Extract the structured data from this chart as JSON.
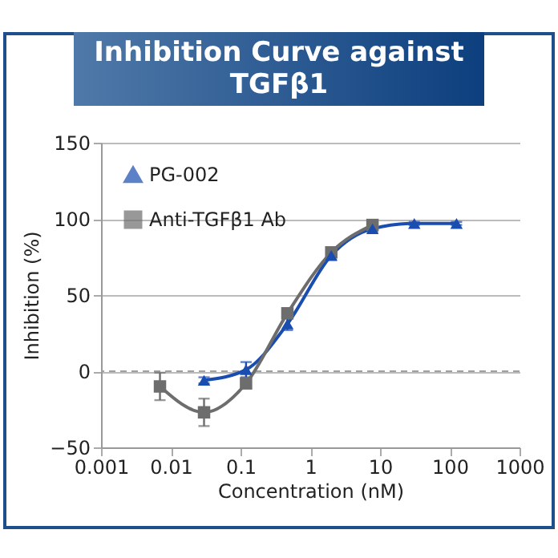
{
  "chart_data": {
    "type": "line",
    "title": "Inhibition Curve against TGFβ1",
    "xlabel": "Concentration (nM)",
    "ylabel": "Inhibition (%)",
    "log": "x",
    "xlim": [
      0.001,
      1000
    ],
    "xticks": [
      0.001,
      0.01,
      0.1,
      1,
      10,
      100,
      1000
    ],
    "ylim": [
      -50,
      150
    ],
    "yticks": [
      -50,
      0,
      50,
      100,
      150
    ],
    "grid": "y",
    "legend": "top left",
    "ref_lines": [
      {
        "axis": "y",
        "value": 0,
        "line_style": "dashed",
        "color": "#a0a0a0"
      }
    ],
    "series": [
      {
        "name": "PG-002",
        "color": "#1a4db0",
        "marker": "triangle",
        "x": [
          0.03,
          0.12,
          0.47,
          2,
          7.8,
          31,
          125
        ],
        "values": [
          -6,
          1,
          31,
          76,
          93.5,
          97,
          97
        ],
        "errors": [
          2,
          5,
          4,
          3,
          2,
          1,
          1
        ]
      },
      {
        "name": "Anti-TGFβ1 Ab",
        "color": "#6d6d6d",
        "marker": "square",
        "x": [
          0.007,
          0.03,
          0.12,
          0.47,
          2,
          7.8
        ],
        "values": [
          -10,
          -27,
          -8,
          38,
          78,
          96
        ],
        "errors": [
          9,
          9,
          3,
          3,
          2,
          2
        ]
      }
    ]
  }
}
